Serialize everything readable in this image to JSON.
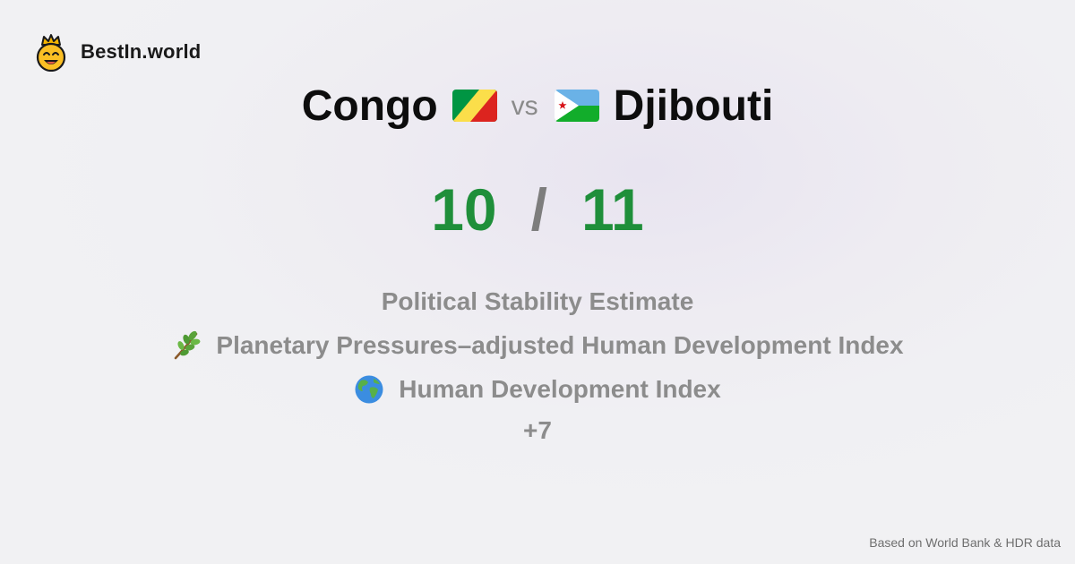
{
  "brand": {
    "name": "BestIn.world",
    "logo_icon": "crowned-smiley-icon"
  },
  "comparison": {
    "left": {
      "name": "Congo",
      "flag_icon": "congo-flag-icon"
    },
    "vs_label": "vs",
    "right": {
      "name": "Djibouti",
      "flag_icon": "djibouti-flag-icon"
    }
  },
  "score": {
    "left": "10",
    "separator": "/",
    "right": "11",
    "color": "#1f8f3a"
  },
  "metrics": [
    {
      "label": "Political Stability Estimate",
      "icon": ""
    },
    {
      "label": "Planetary Pressures–adjusted Human Development Index",
      "icon": "plant-branch-icon"
    },
    {
      "label": "Human Development Index",
      "icon": "globe-icon"
    }
  ],
  "more_label": "+7",
  "footer": "Based on World Bank & HDR data"
}
